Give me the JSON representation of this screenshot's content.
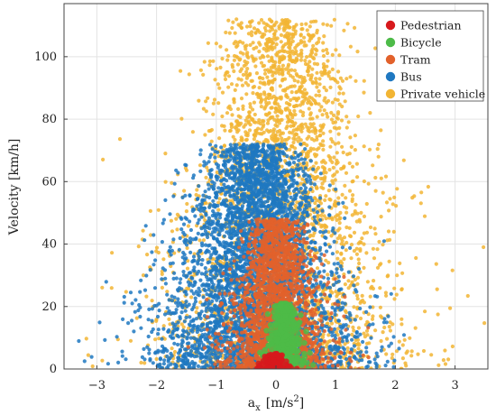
{
  "chart_data": {
    "type": "scatter",
    "title": "",
    "ylabel": "Velocity [km/h]",
    "xlabel_main": "a",
    "xlabel_sub": "x",
    "xlabel_unit_pre": "[m/s",
    "xlabel_unit_sup": "2",
    "xlabel_unit_post": "]",
    "xlim": [
      -3.55,
      3.55
    ],
    "ylim": [
      0,
      117
    ],
    "xticks": [
      -3,
      -2,
      -1,
      0,
      1,
      2,
      3
    ],
    "xtick_labels": [
      "−3",
      "−2",
      "−1",
      "0",
      "1",
      "2",
      "3"
    ],
    "yticks": [
      0,
      20,
      40,
      60,
      80,
      100
    ],
    "ytick_labels": [
      "0",
      "20",
      "40",
      "60",
      "80",
      "100"
    ],
    "grid": true,
    "legend_position": "top-right",
    "series": [
      {
        "name": "Pedestrian",
        "color": "#d7191c",
        "cloud": {
          "n": 120,
          "x_mean": -0.02,
          "x_sd": 0.12,
          "y_min": 0,
          "y_max": 5
        }
      },
      {
        "name": "Bicycle",
        "color": "#4dbb48",
        "cloud": {
          "n": 420,
          "x_mean": 0.15,
          "x_sd": 0.18,
          "y_min": 0,
          "y_max": 21
        }
      },
      {
        "name": "Tram",
        "color": "#e2612b",
        "cloud": {
          "n": 2000,
          "x_mean": 0.0,
          "x_sd": 0.45,
          "y_min": 0,
          "y_max": 48
        }
      },
      {
        "name": "Bus",
        "color": "#1f78c1",
        "cloud": {
          "n": 4200,
          "x_mean": -0.35,
          "x_sd": 0.85,
          "y_min": 0,
          "y_max": 72
        }
      },
      {
        "name": "Private vehicle",
        "color": "#f2b534",
        "cloud": {
          "n": 3000,
          "x_mean": 0.1,
          "x_sd": 1.05,
          "y_min": 0,
          "y_max": 112
        }
      }
    ]
  }
}
